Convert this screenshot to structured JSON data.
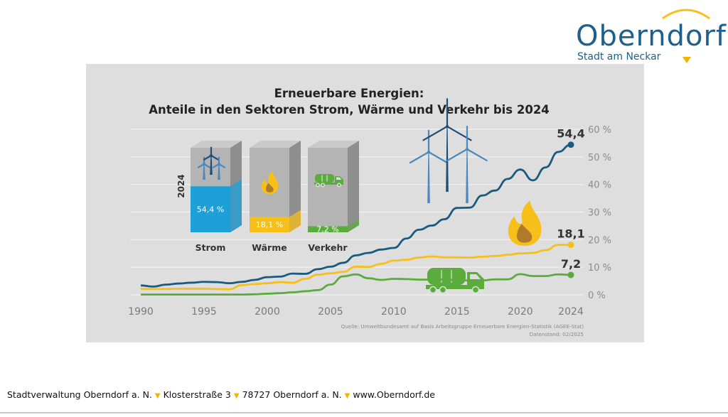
{
  "logo": {
    "name": "Oberndorf",
    "subtitle": "Stadt am Neckar"
  },
  "footer": {
    "items": [
      "Stadtverwaltung Oberndorf a. N.",
      "Klosterstraße 3",
      "78727 Oberndorf a. N.",
      "www.Oberndorf.de"
    ]
  },
  "colors": {
    "strom": "#1a5a80",
    "strom_box": "#1d9fd8",
    "waerme": "#f6bf1a",
    "verkehr": "#5aac3c",
    "panel": "#dedede",
    "logo": "#1f5f8b"
  },
  "chart_data": {
    "type": "line",
    "title": "Erneuerbare Energien:",
    "subtitle": "Anteile in den Sektoren Strom, Wärme und Verkehr bis 2024",
    "x": [
      1990,
      1991,
      1992,
      1993,
      1994,
      1995,
      1996,
      1997,
      1998,
      1999,
      2000,
      2001,
      2002,
      2003,
      2004,
      2005,
      2006,
      2007,
      2008,
      2009,
      2010,
      2011,
      2012,
      2013,
      2014,
      2015,
      2016,
      2017,
      2018,
      2019,
      2020,
      2021,
      2022,
      2023,
      2024
    ],
    "xticks": [
      "1990",
      "1995",
      "2000",
      "2005",
      "2010",
      "2015",
      "2020",
      "2024"
    ],
    "yticks": [
      "0 %",
      "10 %",
      "20 %",
      "30 %",
      "40 %",
      "50 %",
      "60 %"
    ],
    "ylim": [
      0,
      60
    ],
    "series": [
      {
        "key": "strom",
        "values": [
          3.4,
          3.0,
          3.7,
          4.1,
          4.4,
          4.7,
          4.6,
          4.2,
          4.7,
          5.4,
          6.4,
          6.6,
          7.7,
          7.6,
          9.3,
          10.2,
          11.6,
          14.3,
          15.2,
          16.4,
          17.0,
          20.4,
          23.6,
          25.1,
          27.4,
          31.5,
          31.6,
          36.0,
          37.8,
          42.0,
          45.4,
          41.5,
          46.2,
          51.8,
          54.4
        ],
        "end_label": "54,4"
      },
      {
        "key": "waerme",
        "values": [
          2.1,
          2.1,
          2.1,
          2.2,
          2.2,
          2.2,
          2.1,
          2.0,
          3.5,
          3.9,
          4.2,
          4.6,
          4.4,
          5.8,
          7.3,
          7.8,
          8.3,
          10.2,
          10.1,
          11.2,
          12.4,
          12.7,
          13.5,
          13.9,
          13.6,
          13.6,
          13.5,
          13.8,
          14.1,
          14.5,
          15.0,
          15.2,
          16.2,
          18.1,
          18.1
        ],
        "end_label": "18,1"
      },
      {
        "key": "verkehr",
        "values": [
          0.1,
          0.1,
          0.1,
          0.1,
          0.1,
          0.1,
          0.1,
          0.1,
          0.1,
          0.2,
          0.4,
          0.6,
          0.9,
          1.3,
          1.7,
          3.7,
          6.7,
          7.4,
          6.0,
          5.4,
          5.8,
          5.7,
          5.5,
          5.5,
          5.6,
          5.3,
          5.2,
          5.2,
          5.6,
          5.6,
          7.5,
          6.8,
          6.8,
          7.4,
          7.2
        ],
        "end_label": "7,2"
      }
    ],
    "boxes": [
      {
        "key": "strom",
        "label": "Strom",
        "value": 54.4,
        "value_label": "54,4 %",
        "icon": "wind-turbine-icon"
      },
      {
        "key": "waerme",
        "label": "Wärme",
        "value": 18.1,
        "value_label": "18,1 %",
        "icon": "flame-icon"
      },
      {
        "key": "verkehr",
        "label": "Verkehr",
        "value": 7.2,
        "value_label": "7,2 %",
        "icon": "truck-icon"
      }
    ],
    "box_year": "2024",
    "source": "Quelle: Umweltbundesamt auf Basis Arbeitsgruppe Erneuerbare Energien-Statistik (AGEE-Stat)",
    "status": "Datenstand: 02/2025",
    "grid": true
  }
}
